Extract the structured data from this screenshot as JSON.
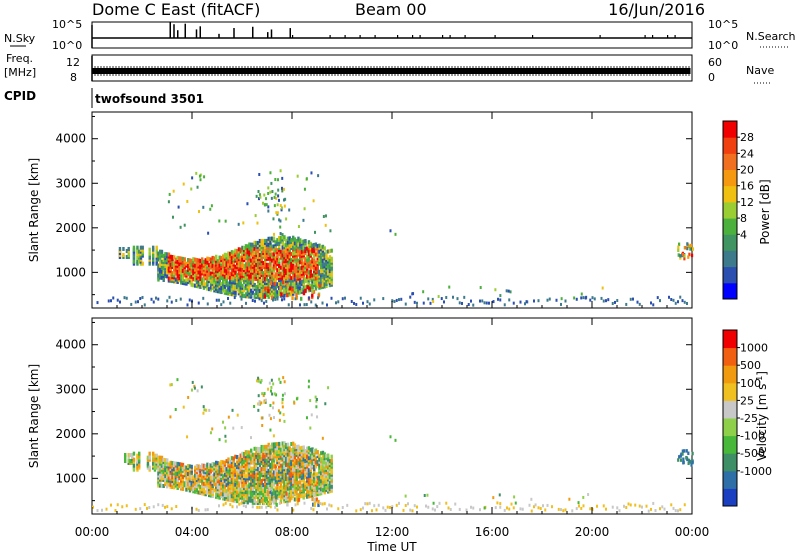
{
  "chart_data": {
    "type": "heatmap",
    "title": "Dome C East (fitACF)",
    "beam": "Beam 00",
    "date": "16/Jun/2016",
    "x_label": "Time UT",
    "x_ticks": [
      "00:00",
      "04:00",
      "08:00",
      "12:00",
      "16:00",
      "20:00",
      "00:00"
    ],
    "x_range_hours": [
      0,
      24
    ],
    "nsky": {
      "label": "N.Sky",
      "ticks": [
        "10^5",
        "10^0"
      ],
      "right_label": "N.Search",
      "right_ticks": [
        "10^5",
        "10^0"
      ]
    },
    "freq": {
      "label_top": "Freq.",
      "label_unit": "[MHz]",
      "ticks": [
        "12",
        "8"
      ],
      "right_label": "Nave",
      "right_ticks": [
        "60",
        "0"
      ]
    },
    "cpid": {
      "label": "CPID",
      "value": "twofsound 3501"
    },
    "power_panel": {
      "y_label": "Slant Range [km]",
      "y_ticks": [
        1000,
        2000,
        3000,
        4000
      ],
      "y_range": [
        200,
        4600
      ],
      "colorbar_label": "Power [dB]",
      "colorbar_ticks": [
        "28",
        "24",
        "20",
        "16",
        "12",
        "8",
        "4"
      ],
      "colors": [
        "#0000ff",
        "#2b4fb0",
        "#3d7a8c",
        "#3f9461",
        "#4cb03c",
        "#9acd32",
        "#f0c010",
        "#f59a10",
        "#f07020",
        "#f04010",
        "#f00000"
      ]
    },
    "velocity_panel": {
      "y_label": "Slant Range [km]",
      "y_ticks": [
        1000,
        2000,
        3000,
        4000
      ],
      "y_range": [
        200,
        4600
      ],
      "colorbar_label": "Velocity [m s^-1]",
      "colorbar_ticks": [
        "1000",
        "500",
        "100",
        "25",
        "-25",
        "-100",
        "-500",
        "-1000"
      ],
      "colors": [
        "#1a3fc0",
        "#2f6fa8",
        "#3f8f66",
        "#48b83a",
        "#8fd04a",
        "#c8c8c8",
        "#f0c020",
        "#f09a10",
        "#f06010",
        "#f00000"
      ]
    },
    "echo_regions": [
      {
        "t_start": 1.0,
        "t_end": 9.6,
        "r_min": 500,
        "r_max": 1800,
        "label": "main echo band"
      },
      {
        "t_start": 6.6,
        "t_end": 7.7,
        "r_min": 2300,
        "r_max": 3250,
        "label": "upper patches"
      },
      {
        "t_start": 0.0,
        "t_end": 24.0,
        "r_min": 200,
        "r_max": 380,
        "label": "near-range clutter"
      },
      {
        "t_start": 23.5,
        "t_end": 24.0,
        "r_min": 1200,
        "r_max": 1600,
        "label": "late echo"
      }
    ]
  }
}
